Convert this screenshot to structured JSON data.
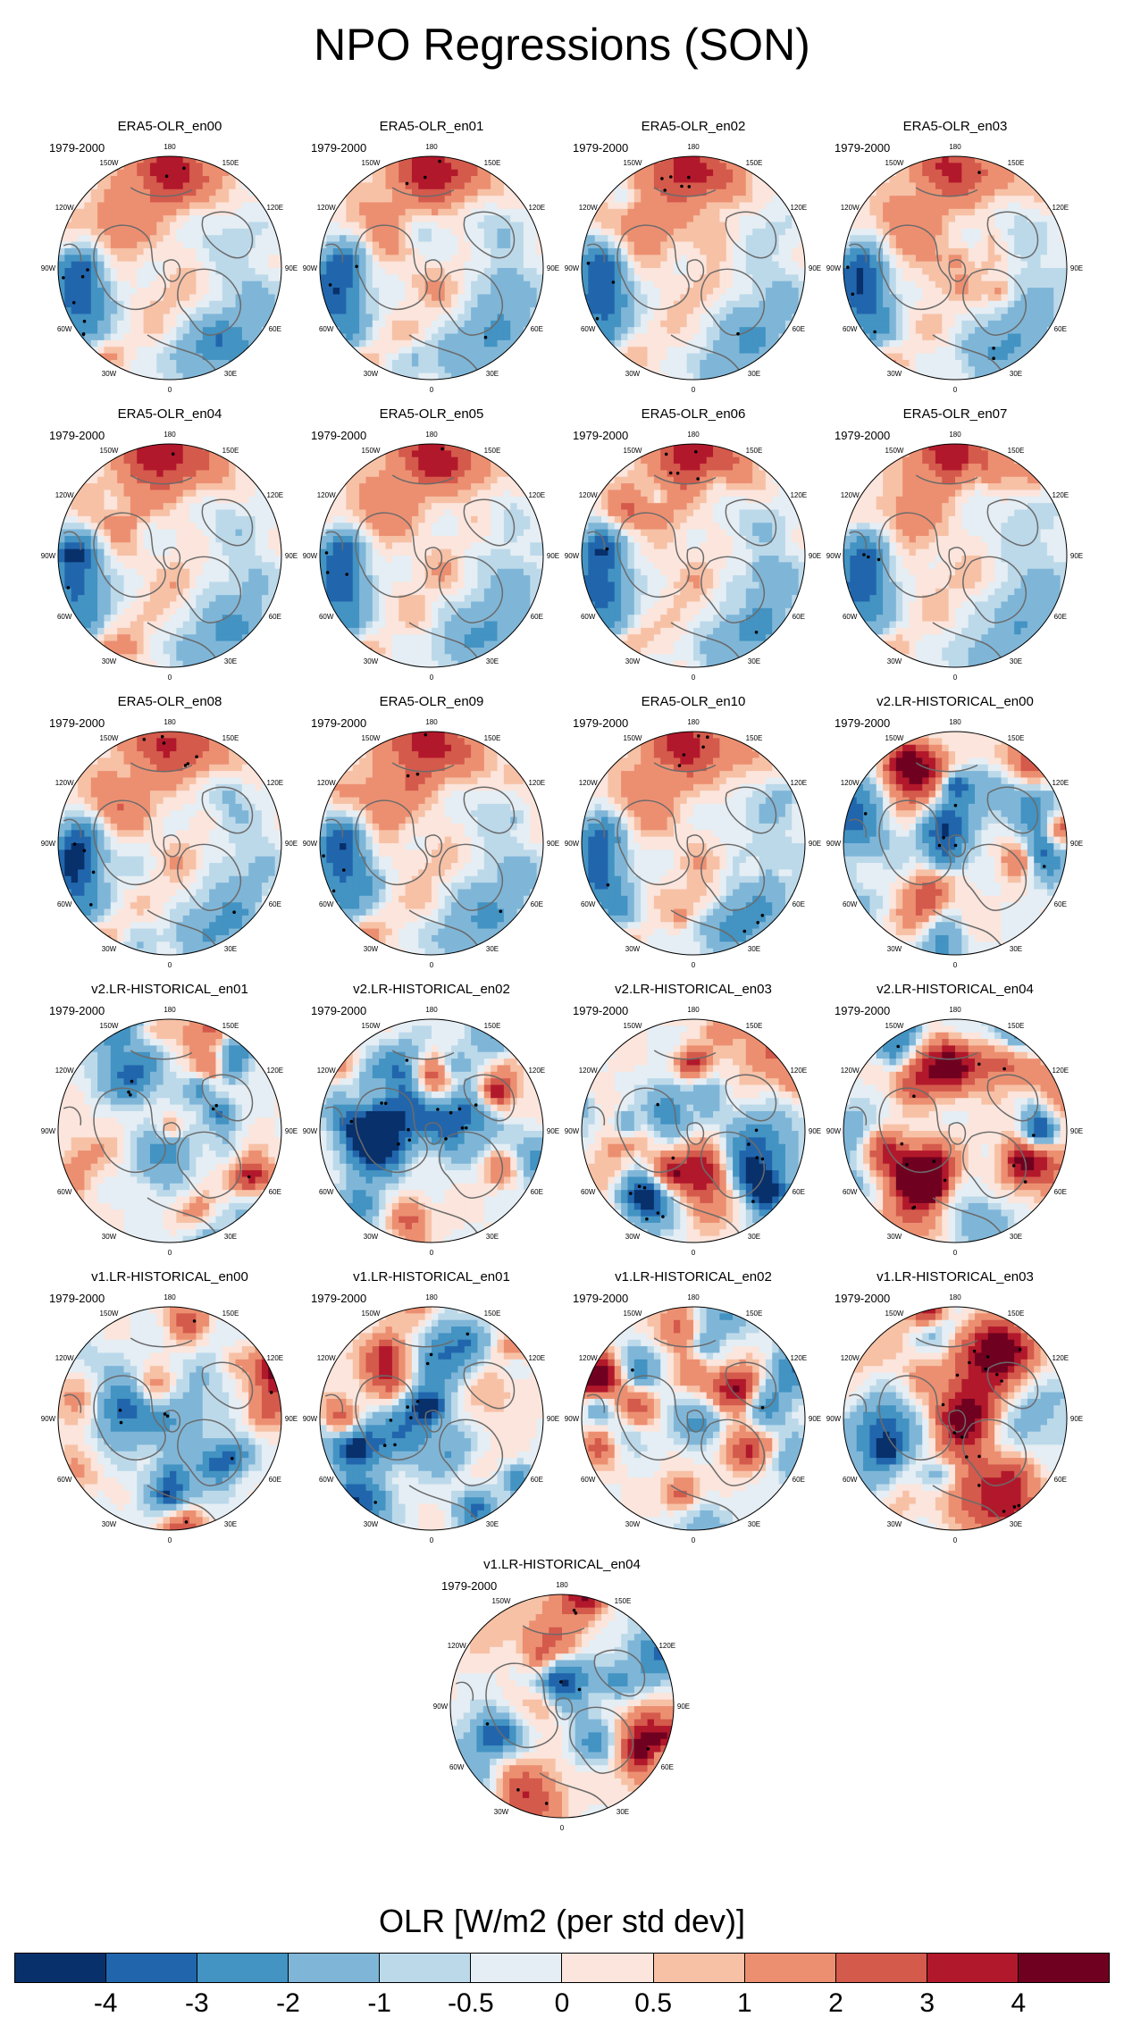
{
  "title": "NPO Regressions (SON)",
  "chart_data": {
    "type": "heatmap",
    "projection": "north polar stereographic",
    "period": "1979-2000",
    "variable": "OLR regression on NPO index",
    "panels": [
      {
        "title": "ERA5-OLR_en00",
        "years": "1979-2000",
        "family": "era5"
      },
      {
        "title": "ERA5-OLR_en01",
        "years": "1979-2000",
        "family": "era5"
      },
      {
        "title": "ERA5-OLR_en02",
        "years": "1979-2000",
        "family": "era5"
      },
      {
        "title": "ERA5-OLR_en03",
        "years": "1979-2000",
        "family": "era5"
      },
      {
        "title": "ERA5-OLR_en04",
        "years": "1979-2000",
        "family": "era5"
      },
      {
        "title": "ERA5-OLR_en05",
        "years": "1979-2000",
        "family": "era5"
      },
      {
        "title": "ERA5-OLR_en06",
        "years": "1979-2000",
        "family": "era5"
      },
      {
        "title": "ERA5-OLR_en07",
        "years": "1979-2000",
        "family": "era5"
      },
      {
        "title": "ERA5-OLR_en08",
        "years": "1979-2000",
        "family": "era5"
      },
      {
        "title": "ERA5-OLR_en09",
        "years": "1979-2000",
        "family": "era5"
      },
      {
        "title": "ERA5-OLR_en10",
        "years": "1979-2000",
        "family": "era5"
      },
      {
        "title": "v2.LR-HISTORICAL_en00",
        "years": "1979-2000",
        "family": "model"
      },
      {
        "title": "v2.LR-HISTORICAL_en01",
        "years": "1979-2000",
        "family": "model"
      },
      {
        "title": "v2.LR-HISTORICAL_en02",
        "years": "1979-2000",
        "family": "model"
      },
      {
        "title": "v2.LR-HISTORICAL_en03",
        "years": "1979-2000",
        "family": "model"
      },
      {
        "title": "v2.LR-HISTORICAL_en04",
        "years": "1979-2000",
        "family": "model"
      },
      {
        "title": "v1.LR-HISTORICAL_en00",
        "years": "1979-2000",
        "family": "model"
      },
      {
        "title": "v1.LR-HISTORICAL_en01",
        "years": "1979-2000",
        "family": "model"
      },
      {
        "title": "v1.LR-HISTORICAL_en02",
        "years": "1979-2000",
        "family": "model"
      },
      {
        "title": "v1.LR-HISTORICAL_en03",
        "years": "1979-2000",
        "family": "model"
      },
      {
        "title": "v1.LR-HISTORICAL_en04",
        "years": "1979-2000",
        "family": "model"
      }
    ],
    "longitude_labels": [
      "180",
      "150E",
      "120E",
      "90E",
      "60E",
      "30E",
      "0",
      "30W",
      "60W",
      "90W",
      "120W",
      "150W"
    ],
    "colorbar": {
      "title": "OLR [W/m2 (per std dev)]",
      "tick_labels": [
        "-4",
        "-3",
        "-2",
        "-1",
        "-0.5",
        "0",
        "0.5",
        "1",
        "2",
        "3",
        "4"
      ],
      "levels": [
        -4,
        -3,
        -2,
        -1,
        -0.5,
        0,
        0.5,
        1,
        2,
        3,
        4
      ],
      "colors": [
        "#08306b",
        "#2166ac",
        "#4393c3",
        "#7fb6d8",
        "#bcd9ea",
        "#e5eef4",
        "#fbe5dc",
        "#f7c1a6",
        "#ec8f71",
        "#d45a4c",
        "#b2182b",
        "#700020"
      ]
    }
  }
}
